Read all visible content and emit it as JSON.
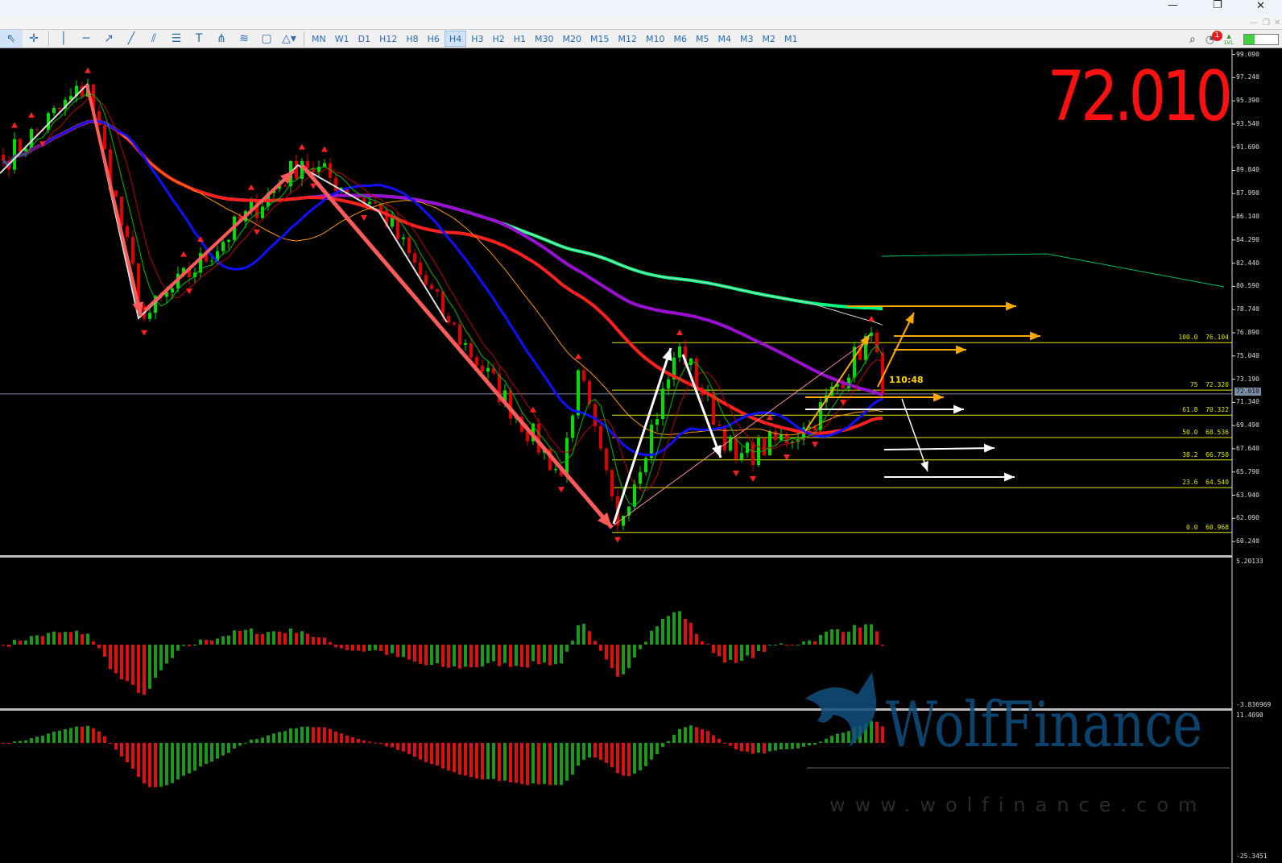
{
  "window": {
    "controls": [
      "minimize",
      "restore",
      "close"
    ]
  },
  "toolbar": {
    "tools": [
      "cursor",
      "crosshair",
      "vertical-line",
      "horizontal-line",
      "trend-line",
      "ray",
      "channel",
      "fibonacci",
      "text",
      "andrews",
      "gann",
      "rectangle",
      "shapes"
    ],
    "timeframes": [
      "MN",
      "W1",
      "D1",
      "H12",
      "H8",
      "H6",
      "H4",
      "H3",
      "H2",
      "H1",
      "M30",
      "M20",
      "M15",
      "M12",
      "M10",
      "M6",
      "M5",
      "M4",
      "M3",
      "M2",
      "M1"
    ],
    "selected_timeframe": "H4",
    "notification_count": "1",
    "level_label": "LVL",
    "level_progress": 0.3
  },
  "main": {
    "big_price": "72.010",
    "current_price": "72.010",
    "countdown": "110:48",
    "price_axis": [
      "99.090",
      "97.240",
      "95.390",
      "93.540",
      "91.690",
      "89.840",
      "87.990",
      "86.140",
      "84.290",
      "82.440",
      "80.590",
      "78.740",
      "76.890",
      "75.040",
      "73.190",
      "71.340",
      "69.490",
      "67.640",
      "65.790",
      "63.940",
      "62.090",
      "60.240"
    ],
    "fib_levels": [
      {
        "level": "100.0",
        "price": "76.104"
      },
      {
        "level": "75",
        "price": "72.320"
      },
      {
        "level": "61.8",
        "price": "70.322"
      },
      {
        "level": "50.0",
        "price": "68.536"
      },
      {
        "level": "38.2",
        "price": "66.750"
      },
      {
        "level": "23.6",
        "price": "64.540"
      },
      {
        "level": "0.0",
        "price": "60.968"
      }
    ],
    "colors": {
      "up": "#00e000",
      "down": "#e00000",
      "fib": "#e6e600",
      "zigzag": "#ff5a5a"
    }
  },
  "osc1": {
    "axis_top": "5.20133",
    "axis_bottom": "-3.836969"
  },
  "osc2": {
    "axis_top": "11.4090",
    "axis_bottom": "-25.3451"
  },
  "watermark": {
    "brand": "WolfFinance",
    "url": "www.wolfinance.com"
  },
  "chart_data": {
    "type": "candlestick",
    "timeframe": "H4",
    "pivots": [
      [
        0,
        90.6
      ],
      [
        15,
        96.7
      ],
      [
        25,
        78.0
      ],
      [
        53,
        90.6
      ],
      [
        67,
        86.7
      ],
      [
        79,
        77.7
      ],
      [
        99,
        65.5
      ],
      [
        102,
        73.9
      ],
      [
        109,
        61.5
      ],
      [
        120,
        75.8
      ],
      [
        130,
        66.8
      ],
      [
        143,
        69.4
      ],
      [
        154,
        76.9
      ],
      [
        156,
        72.0
      ]
    ]
  }
}
